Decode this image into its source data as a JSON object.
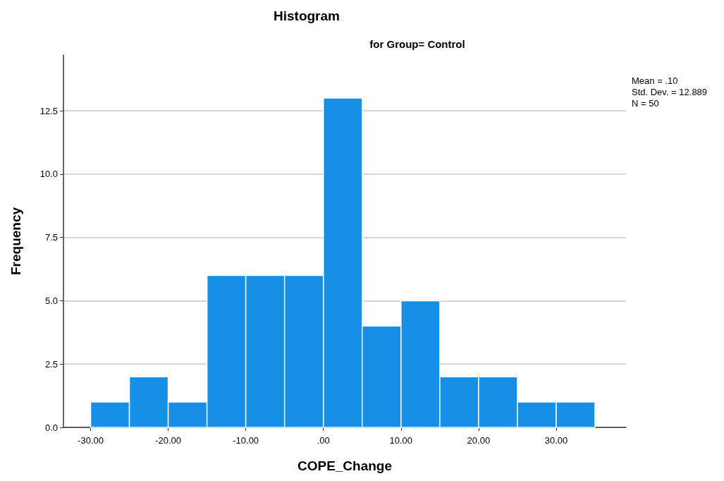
{
  "chart_data": {
    "type": "histogram",
    "title": "Histogram",
    "subtitle": "for Group= Control",
    "xlabel": "COPE_Change",
    "ylabel": "Frequency",
    "bins": [
      -30,
      -25,
      -20,
      -15,
      -10,
      -5,
      0,
      5,
      10,
      15,
      20,
      25,
      30,
      35
    ],
    "values": [
      1,
      2,
      1,
      6,
      6,
      6,
      13,
      4,
      5,
      2,
      2,
      1,
      1
    ],
    "color": "#1590e6",
    "xlim": [
      -33.5,
      39
    ],
    "xticks": [
      {
        "value": -30,
        "label": "-30.00"
      },
      {
        "value": -20,
        "label": "-20.00"
      },
      {
        "value": -10,
        "label": "-10.00"
      },
      {
        "value": 0,
        "label": ".00"
      },
      {
        "value": 10,
        "label": "10.00"
      },
      {
        "value": 20,
        "label": "20.00"
      },
      {
        "value": 30,
        "label": "30.00"
      }
    ],
    "ylim": [
      0,
      14.7
    ],
    "yticks": [
      {
        "value": 0,
        "label": "0.0"
      },
      {
        "value": 2.5,
        "label": "2.5"
      },
      {
        "value": 5,
        "label": "5.0"
      },
      {
        "value": 7.5,
        "label": "7.5"
      },
      {
        "value": 10,
        "label": "10.0"
      },
      {
        "value": 12.5,
        "label": "12.5"
      }
    ],
    "grid": "y",
    "annotations": [
      "Mean = .10",
      "Std. Dev. = 12.889",
      "N = 50"
    ]
  }
}
